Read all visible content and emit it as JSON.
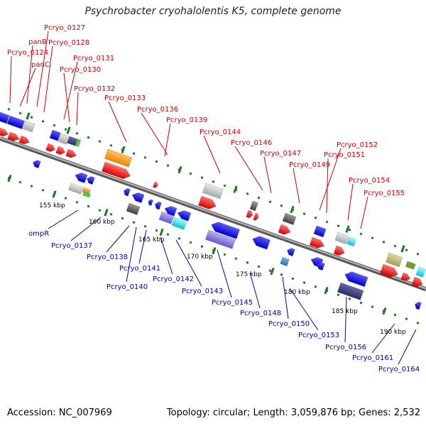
{
  "title": "Psychrobacter cryohalolentis K5, complete genome",
  "footer": {
    "accession": "Accession: NC_007969",
    "summary": "Topology: circular; Length: 3,059,876 bp; Genes: 2,532"
  },
  "colors": {
    "forward_label": "#cc0000",
    "reverse_label": "#0000aa",
    "backbone": "#8a8a8a",
    "tick": "#1a7a1a"
  },
  "scale_labels": [
    "155 kbp",
    "160 kbp",
    "165 kbp",
    "170 kbp",
    "175 kbp",
    "180 kbp",
    "185 kbp",
    "190 kbp"
  ],
  "forward_gene_labels": [
    "Pcryo_0127",
    "panB",
    "Pcryo_0128",
    "Pcryo_0124",
    "panC",
    "Pcryo_0131",
    "Pcryo_0130",
    "Pcryo_0132",
    "Pcryo_0133",
    "Pcryo_0136",
    "Pcryo_0139",
    "Pcryo_0144",
    "Pcryo_0146",
    "Pcryo_0147",
    "Pcryo_0149",
    "Pcryo_0152",
    "Pcryo_0151",
    "Pcryo_0154",
    "Pcryo_0155"
  ],
  "reverse_gene_labels": [
    "ompR",
    "Pcryo_0137",
    "Pcryo_0138",
    "Pcryo_0141",
    "Pcryo_0140",
    "Pcryo_0142",
    "Pcryo_0143",
    "Pcryo_0145",
    "Pcryo_0148",
    "Pcryo_0150",
    "Pcryo_0153",
    "Pcryo_0156",
    "Pcryo_0161",
    "Pcryo_0164"
  ]
}
